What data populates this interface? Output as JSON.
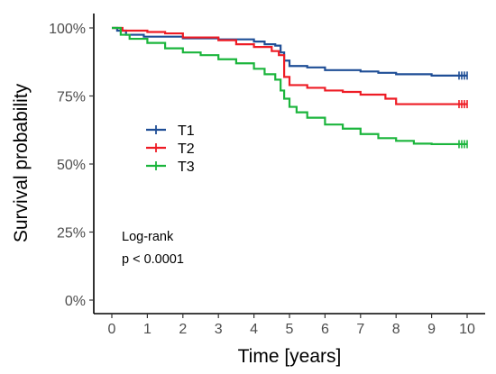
{
  "chart_data": {
    "type": "line",
    "xlabel": "Time [years]",
    "ylabel": "Survival probability",
    "xlim": [
      0,
      10
    ],
    "ylim": [
      0,
      1
    ],
    "x_ticks": [
      "0",
      "1",
      "2",
      "3",
      "4",
      "5",
      "6",
      "7",
      "8",
      "9",
      "10"
    ],
    "y_ticks": [
      "0%",
      "25%",
      "50%",
      "75%",
      "100%"
    ],
    "grid": false,
    "legend_placement": "left",
    "annotation": [
      "Log-rank",
      "p < 0.0001"
    ],
    "series": [
      {
        "name": "T1",
        "color": "#1f4e96",
        "points": [
          [
            0,
            1.0
          ],
          [
            0.15,
            0.99
          ],
          [
            0.4,
            0.975
          ],
          [
            0.9,
            0.968
          ],
          [
            2.0,
            0.962
          ],
          [
            3.0,
            0.958
          ],
          [
            4.0,
            0.95
          ],
          [
            4.3,
            0.94
          ],
          [
            4.6,
            0.935
          ],
          [
            4.75,
            0.91
          ],
          [
            4.85,
            0.88
          ],
          [
            5.0,
            0.86
          ],
          [
            5.5,
            0.855
          ],
          [
            6.0,
            0.845
          ],
          [
            7.0,
            0.84
          ],
          [
            7.5,
            0.835
          ],
          [
            8.0,
            0.83
          ],
          [
            9.0,
            0.825
          ],
          [
            10.0,
            0.825
          ]
        ]
      },
      {
        "name": "T2",
        "color": "#ee1c25",
        "points": [
          [
            0,
            1.0
          ],
          [
            0.3,
            0.99
          ],
          [
            1.0,
            0.985
          ],
          [
            1.5,
            0.98
          ],
          [
            2.0,
            0.965
          ],
          [
            3.0,
            0.955
          ],
          [
            3.5,
            0.94
          ],
          [
            4.0,
            0.93
          ],
          [
            4.5,
            0.915
          ],
          [
            4.7,
            0.9
          ],
          [
            4.85,
            0.82
          ],
          [
            5.0,
            0.79
          ],
          [
            5.5,
            0.78
          ],
          [
            6.0,
            0.77
          ],
          [
            6.5,
            0.765
          ],
          [
            7.0,
            0.755
          ],
          [
            7.7,
            0.74
          ],
          [
            8.0,
            0.72
          ],
          [
            9.0,
            0.72
          ],
          [
            10.0,
            0.72
          ]
        ]
      },
      {
        "name": "T3",
        "color": "#1bb53c",
        "points": [
          [
            0,
            1.0
          ],
          [
            0.25,
            0.975
          ],
          [
            0.5,
            0.96
          ],
          [
            1.0,
            0.945
          ],
          [
            1.5,
            0.925
          ],
          [
            2.0,
            0.91
          ],
          [
            2.5,
            0.9
          ],
          [
            3.0,
            0.885
          ],
          [
            3.5,
            0.87
          ],
          [
            4.0,
            0.85
          ],
          [
            4.3,
            0.83
          ],
          [
            4.6,
            0.81
          ],
          [
            4.75,
            0.77
          ],
          [
            4.85,
            0.74
          ],
          [
            5.0,
            0.71
          ],
          [
            5.2,
            0.69
          ],
          [
            5.5,
            0.67
          ],
          [
            6.0,
            0.645
          ],
          [
            6.5,
            0.63
          ],
          [
            7.0,
            0.61
          ],
          [
            7.5,
            0.595
          ],
          [
            8.0,
            0.585
          ],
          [
            8.5,
            0.575
          ],
          [
            9.0,
            0.573
          ],
          [
            10.0,
            0.573
          ]
        ]
      }
    ]
  }
}
